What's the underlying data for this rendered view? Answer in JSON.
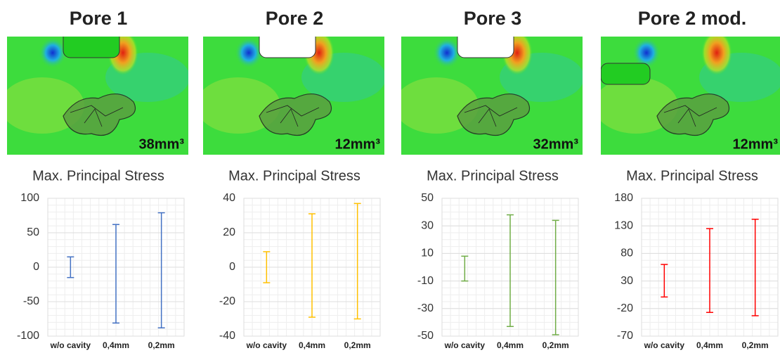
{
  "chart_data": [
    {
      "type": "range",
      "title": "Pore 1",
      "annotation": "38mm³",
      "subtitle": "Max. Principal Stress",
      "categories": [
        "w/o cavity",
        "0,4mm",
        "0,2mm"
      ],
      "high": [
        15,
        62,
        79
      ],
      "low": [
        -15,
        -81,
        -88
      ],
      "color": "#4472c4",
      "ylim": [
        -100,
        100
      ],
      "yticks": [
        -100,
        -50,
        0,
        50,
        100
      ],
      "grid": true
    },
    {
      "type": "range",
      "title": "Pore 2",
      "annotation": "12mm³",
      "subtitle": "Max. Principal Stress",
      "categories": [
        "w/o cavity",
        "0,4mm",
        "0,2mm"
      ],
      "high": [
        9,
        31,
        37
      ],
      "low": [
        -9,
        -29,
        -30
      ],
      "color": "#ffc000",
      "ylim": [
        -40,
        40
      ],
      "yticks": [
        -40,
        -20,
        0,
        20,
        40
      ],
      "grid": true
    },
    {
      "type": "range",
      "title": "Pore 3",
      "annotation": "32mm³",
      "subtitle": "Max. Principal Stress",
      "categories": [
        "w/o cavity",
        "0,4mm",
        "0,2mm"
      ],
      "high": [
        8,
        38,
        34
      ],
      "low": [
        -10,
        -43,
        -49
      ],
      "color": "#70ad47",
      "ylim": [
        -50,
        50
      ],
      "yticks": [
        -50,
        -30,
        -10,
        10,
        30,
        50
      ],
      "grid": true
    },
    {
      "type": "range",
      "title": "Pore 2 mod.",
      "annotation": "12mm³",
      "subtitle": "Max. Principal Stress",
      "categories": [
        "w/o cavity",
        "0,4mm",
        "0,2mm"
      ],
      "high": [
        60,
        125,
        142
      ],
      "low": [
        1,
        -27,
        -33
      ],
      "color": "#ff0000",
      "ylim": [
        -70,
        180
      ],
      "yticks": [
        -70,
        -20,
        30,
        80,
        130,
        180
      ],
      "grid": true
    }
  ]
}
